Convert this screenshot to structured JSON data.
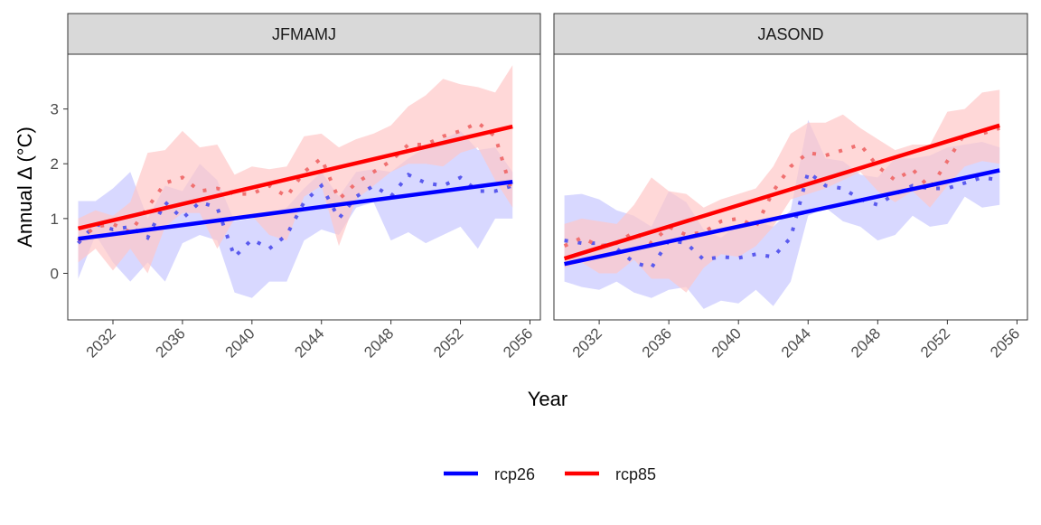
{
  "chart_data": {
    "type": "line",
    "xlabel": "Year",
    "ylabel": "Annual Δ (°C)",
    "xlim": [
      2029.4,
      2056.6
    ],
    "ylim": [
      -0.85,
      4.0
    ],
    "xticks": [
      2032,
      2036,
      2040,
      2044,
      2048,
      2052,
      2056
    ],
    "yticks": [
      0,
      1,
      2,
      3
    ],
    "legend_position": "bottom",
    "colors": {
      "rcp26_line": "#0000ff",
      "rcp85_line": "#ff0000",
      "rcp26_band": "#c8c8ff",
      "rcp85_band": "#ffc8c8",
      "rcp26_dots": "#5a5aee",
      "rcp85_dots": "#f07070"
    },
    "panels": [
      {
        "label": "JFMAMJ",
        "years": [
          2030,
          2031,
          2032,
          2033,
          2034,
          2035,
          2036,
          2037,
          2038,
          2039,
          2040,
          2041,
          2042,
          2043,
          2044,
          2045,
          2046,
          2047,
          2048,
          2049,
          2050,
          2051,
          2052,
          2053,
          2054,
          2055
        ],
        "series": [
          {
            "name": "rcp26",
            "mean": [
              0.55,
              0.9,
              0.8,
              0.85,
              0.65,
              1.3,
              1.0,
              1.3,
              1.2,
              0.3,
              0.62,
              0.45,
              0.7,
              1.3,
              1.6,
              1.0,
              1.4,
              1.6,
              1.4,
              1.8,
              1.65,
              1.6,
              1.75,
              1.5,
              1.5,
              1.6
            ],
            "lower": [
              -0.1,
              0.7,
              0.2,
              -0.15,
              0.2,
              -0.15,
              0.55,
              0.7,
              0.6,
              -0.35,
              -0.45,
              -0.15,
              -0.15,
              0.6,
              0.8,
              0.7,
              1.2,
              1.3,
              0.6,
              0.75,
              0.55,
              0.7,
              0.85,
              0.45,
              1.0,
              1.0
            ],
            "upper": [
              1.32,
              1.32,
              1.55,
              1.85,
              1.0,
              1.6,
              1.5,
              2.0,
              1.7,
              0.95,
              1.0,
              1.1,
              1.2,
              1.55,
              1.85,
              1.4,
              1.85,
              1.9,
              1.85,
              2.1,
              2.3,
              2.45,
              2.6,
              2.25,
              2.3,
              1.85
            ],
            "trend": [
              0.63,
              1.67
            ]
          },
          {
            "name": "rcp85",
            "mean": [
              0.6,
              0.85,
              0.9,
              0.75,
              1.2,
              1.65,
              1.75,
              1.5,
              1.55,
              1.45,
              1.45,
              1.6,
              1.4,
              1.85,
              2.1,
              1.35,
              1.65,
              1.85,
              2.05,
              2.35,
              2.35,
              2.5,
              2.6,
              2.75,
              2.5,
              1.45
            ],
            "lower": [
              0.2,
              0.45,
              0.05,
              0.45,
              0.0,
              0.85,
              1.1,
              1.1,
              0.45,
              1.0,
              1.05,
              0.7,
              0.6,
              1.4,
              1.6,
              0.5,
              1.35,
              1.6,
              1.85,
              2.0,
              2.0,
              1.95,
              2.2,
              2.3,
              1.7,
              1.2
            ],
            "upper": [
              1.0,
              1.15,
              1.05,
              1.3,
              2.2,
              2.25,
              2.6,
              2.3,
              2.35,
              1.8,
              1.95,
              1.9,
              1.95,
              2.5,
              2.55,
              2.3,
              2.45,
              2.55,
              2.7,
              3.05,
              3.25,
              3.55,
              3.45,
              3.4,
              3.3,
              3.8
            ],
            "trend": [
              0.82,
              2.68
            ]
          }
        ]
      },
      {
        "label": "JASOND",
        "years": [
          2030,
          2031,
          2032,
          2033,
          2034,
          2035,
          2036,
          2037,
          2038,
          2039,
          2040,
          2041,
          2042,
          2043,
          2044,
          2045,
          2046,
          2047,
          2048,
          2049,
          2050,
          2051,
          2052,
          2053,
          2054,
          2055
        ],
        "series": [
          {
            "name": "rcp26",
            "mean": [
              0.6,
              0.55,
              0.55,
              0.45,
              0.2,
              0.1,
              0.6,
              0.55,
              0.25,
              0.3,
              0.28,
              0.35,
              0.3,
              0.65,
              1.85,
              1.6,
              1.55,
              1.35,
              1.25,
              1.45,
              1.6,
              1.55,
              1.55,
              1.65,
              1.75,
              1.7
            ],
            "lower": [
              -0.15,
              -0.25,
              -0.3,
              -0.15,
              -0.35,
              -0.45,
              -0.3,
              -0.25,
              -0.65,
              -0.5,
              -0.55,
              -0.3,
              -0.6,
              -0.15,
              1.05,
              1.2,
              0.95,
              0.85,
              0.6,
              0.7,
              1.05,
              0.85,
              0.9,
              1.4,
              1.2,
              1.25
            ],
            "upper": [
              1.42,
              1.45,
              1.35,
              1.15,
              1.05,
              0.85,
              1.5,
              1.3,
              0.8,
              0.65,
              0.9,
              0.95,
              0.85,
              1.15,
              2.8,
              2.1,
              2.05,
              1.8,
              1.75,
              2.1,
              2.1,
              2.15,
              2.3,
              2.35,
              2.4,
              2.3
            ],
            "trend": [
              0.17,
              1.88
            ]
          },
          {
            "name": "rcp85",
            "mean": [
              0.5,
              0.65,
              0.5,
              0.55,
              0.75,
              0.55,
              0.85,
              0.7,
              0.75,
              0.95,
              1.0,
              0.85,
              1.5,
              1.95,
              2.2,
              2.15,
              2.25,
              2.35,
              1.95,
              1.7,
              1.9,
              1.55,
              2.05,
              2.55,
              2.55,
              2.65
            ],
            "lower": [
              0.1,
              0.2,
              0.0,
              0.0,
              0.25,
              -0.1,
              -0.1,
              -0.35,
              0.1,
              0.35,
              0.3,
              0.5,
              0.85,
              1.35,
              1.45,
              1.55,
              1.7,
              1.85,
              1.5,
              1.3,
              1.5,
              1.2,
              1.6,
              1.95,
              2.05,
              2.0
            ],
            "upper": [
              0.9,
              1.0,
              0.95,
              0.9,
              1.25,
              1.75,
              1.5,
              1.45,
              1.2,
              1.35,
              1.45,
              1.55,
              1.95,
              2.55,
              2.75,
              2.75,
              2.9,
              2.65,
              2.45,
              2.25,
              2.35,
              2.35,
              2.95,
              3.0,
              3.3,
              3.35
            ],
            "trend": [
              0.27,
              2.7
            ]
          }
        ]
      }
    ],
    "legend": [
      {
        "name": "rcp26",
        "color": "#0000ff"
      },
      {
        "name": "rcp85",
        "color": "#ff0000"
      }
    ]
  }
}
